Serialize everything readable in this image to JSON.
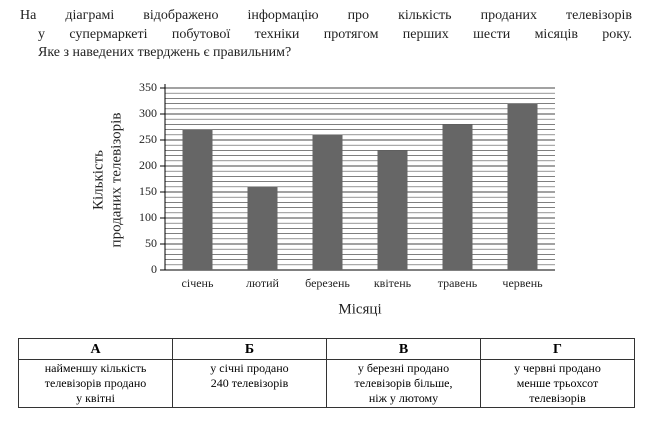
{
  "question": {
    "lines": [
      "На діаграмі відображено інформацію про кількість проданих телевізорів",
      "у супермаркеті побутової техніки протягом перших шести місяців року.",
      "Яке з наведених тверджень є правильним?"
    ]
  },
  "chart_data": {
    "type": "bar",
    "ylabel": [
      "Кількість",
      "проданих телевізорів"
    ],
    "xlabel": "Місяці",
    "categories": [
      "січень",
      "лютий",
      "березень",
      "квітень",
      "травень",
      "червень"
    ],
    "values": [
      270,
      160,
      260,
      230,
      280,
      320
    ],
    "color": "#666666",
    "ylim": [
      0,
      350
    ],
    "yticks": [
      0,
      50,
      100,
      150,
      200,
      250,
      300,
      350
    ],
    "grid": true,
    "grid_minor_step": 10
  },
  "table": {
    "header": [
      "А",
      "Б",
      "В",
      "Г"
    ],
    "cells": [
      [
        "найменшу кількість",
        "телевізорів продано",
        "у квітні"
      ],
      [
        "у січні продано",
        "240 телевізорів"
      ],
      [
        "у березні продано",
        "телевізорів більше,",
        "ніж у лютому"
      ],
      [
        "у червні продано",
        "менше трьохсот",
        "телевізорів"
      ]
    ]
  }
}
